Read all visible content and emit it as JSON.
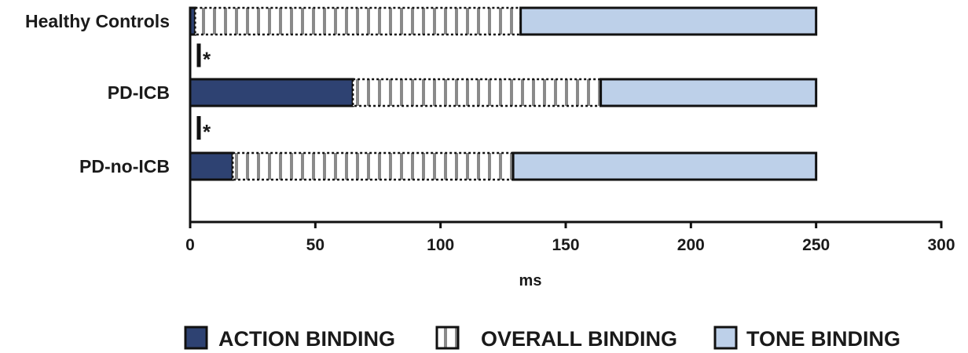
{
  "chart_data": {
    "type": "bar",
    "orientation": "horizontal",
    "stacked": true,
    "categories": [
      "Healthy Controls",
      "PD-ICB",
      "PD-no-ICB"
    ],
    "series": [
      {
        "name": "ACTION BINDING",
        "values": [
          2,
          65,
          17
        ],
        "color": "#2e4272",
        "pattern": "solid"
      },
      {
        "name": "OVERALL BINDING",
        "values": [
          130,
          99,
          112
        ],
        "color": "#ffffff",
        "pattern": "vertical-stripes"
      },
      {
        "name": "TONE BINDING",
        "values": [
          118,
          86,
          121
        ],
        "color": "#bdd0e9",
        "pattern": "solid"
      }
    ],
    "xlabel": "ms",
    "ylabel": "",
    "xlim": [
      0,
      300
    ],
    "xticks": [
      0,
      50,
      100,
      150,
      200,
      250,
      300
    ],
    "grid": false,
    "legend_position": "bottom",
    "annotations": [
      {
        "text": "*",
        "between": [
          "Healthy Controls",
          "PD-ICB"
        ]
      },
      {
        "text": "*",
        "between": [
          "PD-ICB",
          "PD-no-ICB"
        ]
      }
    ]
  }
}
